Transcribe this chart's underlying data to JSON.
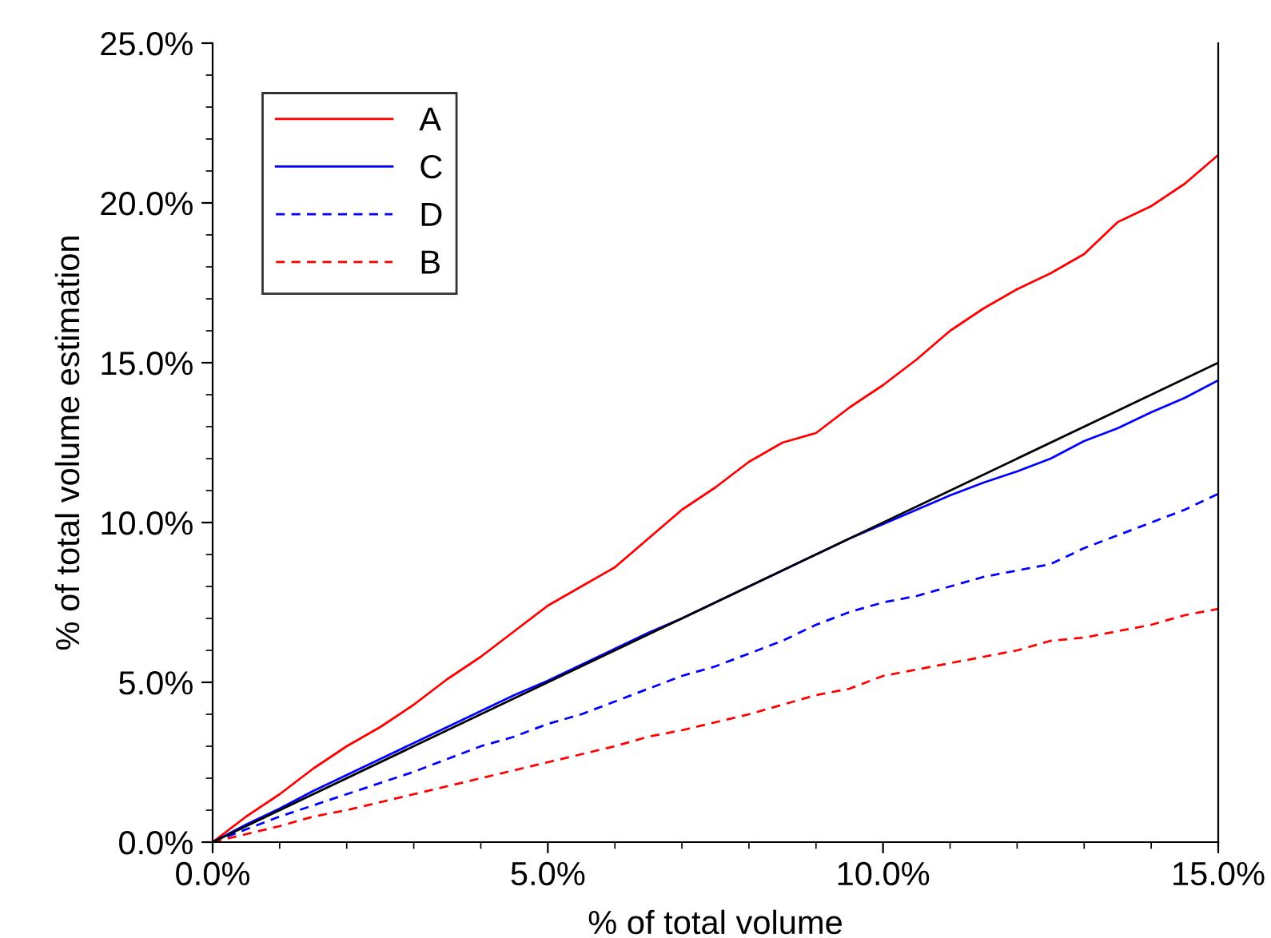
{
  "chart_data": {
    "type": "line",
    "xlabel": "% of total volume",
    "ylabel": "% of total volume estimation",
    "x": [
      0,
      0.5,
      1,
      1.5,
      2,
      2.5,
      3,
      3.5,
      4,
      4.5,
      5,
      5.5,
      6,
      6.5,
      7,
      7.5,
      8,
      8.5,
      9,
      9.5,
      10,
      10.5,
      11,
      11.5,
      12,
      12.5,
      13,
      13.5,
      14,
      14.5,
      15
    ],
    "series": [
      {
        "name": "A",
        "color": "#ff0000",
        "line_style": "solid",
        "values": [
          0,
          0.8,
          1.5,
          2.3,
          3.0,
          3.6,
          4.3,
          5.1,
          5.8,
          6.6,
          7.4,
          8.0,
          8.6,
          9.5,
          10.4,
          11.1,
          11.9,
          12.5,
          12.8,
          13.6,
          14.3,
          15.1,
          16.0,
          16.7,
          17.3,
          17.8,
          18.4,
          19.4,
          19.9,
          20.6,
          21.5
        ]
      },
      {
        "name": "C",
        "color": "#0000ff",
        "line_style": "solid",
        "values": [
          0,
          0.55,
          1.05,
          1.6,
          2.1,
          2.6,
          3.1,
          3.6,
          4.1,
          4.6,
          5.05,
          5.55,
          6.05,
          6.55,
          7.0,
          7.5,
          8.0,
          8.5,
          9.0,
          9.5,
          9.95,
          10.4,
          10.85,
          11.25,
          11.6,
          12.0,
          12.55,
          12.95,
          13.45,
          13.9,
          14.45
        ]
      },
      {
        "name": "D",
        "color": "#0000ff",
        "line_style": "dashed",
        "values": [
          0,
          0.4,
          0.8,
          1.15,
          1.5,
          1.85,
          2.2,
          2.6,
          3.0,
          3.3,
          3.7,
          4.0,
          4.4,
          4.8,
          5.2,
          5.5,
          5.9,
          6.3,
          6.8,
          7.2,
          7.5,
          7.7,
          8.0,
          8.3,
          8.5,
          8.7,
          9.2,
          9.6,
          10.0,
          10.4,
          10.9
        ]
      },
      {
        "name": "B",
        "color": "#ff0000",
        "line_style": "dashed",
        "values": [
          0,
          0.25,
          0.5,
          0.8,
          1.0,
          1.25,
          1.5,
          1.75,
          2.0,
          2.25,
          2.5,
          2.75,
          3.0,
          3.3,
          3.5,
          3.75,
          4.0,
          4.3,
          4.6,
          4.8,
          5.2,
          5.4,
          5.6,
          5.8,
          6.0,
          6.3,
          6.4,
          6.6,
          6.8,
          7.1,
          7.3
        ]
      },
      {
        "color": "#000000",
        "line_style": "solid",
        "x": [
          0,
          15
        ],
        "values": [
          0,
          15
        ]
      }
    ],
    "xlim": [
      0,
      15
    ],
    "ylim": [
      0,
      25
    ],
    "xticks": [
      {
        "value": 0,
        "label": "0.0%"
      },
      {
        "value": 5,
        "label": "5.0%"
      },
      {
        "value": 10,
        "label": "10.0%"
      },
      {
        "value": 15,
        "label": "15.0%"
      }
    ],
    "yticks": [
      {
        "value": 0,
        "label": "0.0%"
      },
      {
        "value": 5,
        "label": "5.0%"
      },
      {
        "value": 10,
        "label": "10.0%"
      },
      {
        "value": 15,
        "label": "15.0%"
      },
      {
        "value": 20,
        "label": "20.0%"
      },
      {
        "value": 25,
        "label": "25.0%"
      }
    ],
    "grid": false,
    "legend": "top left"
  }
}
